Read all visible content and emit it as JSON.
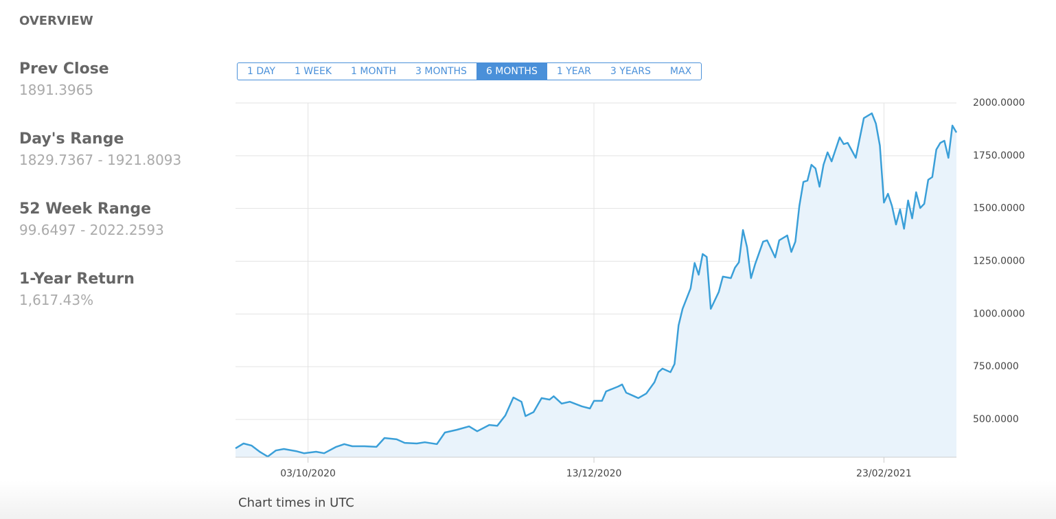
{
  "header": {
    "title": "OVERVIEW"
  },
  "stats": [
    {
      "label": "Prev Close",
      "value": "1891.3965"
    },
    {
      "label": "Day's Range",
      "value": "1829.7367 - 1921.8093"
    },
    {
      "label": "52 Week Range",
      "value": "99.6497 - 2022.2593"
    },
    {
      "label": "1-Year Return",
      "value": "1,617.43%"
    }
  ],
  "range_buttons": [
    "1 DAY",
    "1 WEEK",
    "1 MONTH",
    "3 MONTHS",
    "6 MONTHS",
    "1 YEAR",
    "3 YEARS",
    "MAX"
  ],
  "active_range_button": 4,
  "chart_data": {
    "type": "area",
    "x": [
      "15/09/2020",
      "17/09/2020",
      "19/09/2020",
      "21/09/2020",
      "23/09/2020",
      "25/09/2020",
      "27/09/2020",
      "30/09/2020",
      "02/10/2020",
      "05/10/2020",
      "07/10/2020",
      "10/10/2020",
      "12/10/2020",
      "14/10/2020",
      "17/10/2020",
      "20/10/2020",
      "22/10/2020",
      "25/10/2020",
      "27/10/2020",
      "30/10/2020",
      "01/11/2020",
      "04/11/2020",
      "06/11/2020",
      "09/11/2020",
      "12/11/2020",
      "14/11/2020",
      "17/11/2020",
      "19/11/2020",
      "21/11/2020",
      "23/11/2020",
      "25/11/2020",
      "26/11/2020",
      "28/11/2020",
      "30/11/2020",
      "02/12/2020",
      "03/12/2020",
      "05/12/2020",
      "07/12/2020",
      "10/12/2020",
      "12/12/2020",
      "13/12/2020",
      "15/12/2020",
      "16/12/2020",
      "19/12/2020",
      "20/12/2020",
      "21/12/2020",
      "23/12/2020",
      "24/12/2020",
      "26/12/2020",
      "28/12/2020",
      "29/12/2020",
      "30/12/2020",
      "01/01/2021",
      "02/01/2021",
      "03/01/2021",
      "04/01/2021",
      "06/01/2021",
      "07/01/2021",
      "08/01/2021",
      "09/01/2021",
      "10/01/2021",
      "11/01/2021",
      "13/01/2021",
      "14/01/2021",
      "16/01/2021",
      "17/01/2021",
      "18/01/2021",
      "19/01/2021",
      "20/01/2021",
      "21/01/2021",
      "22/01/2021",
      "24/01/2021",
      "25/01/2021",
      "27/01/2021",
      "28/01/2021",
      "30/01/2021",
      "31/01/2021",
      "01/02/2021",
      "02/02/2021",
      "03/02/2021",
      "04/02/2021",
      "05/02/2021",
      "06/02/2021",
      "07/02/2021",
      "08/02/2021",
      "09/02/2021",
      "10/02/2021",
      "12/02/2021",
      "13/02/2021",
      "14/02/2021",
      "16/02/2021",
      "18/02/2021",
      "20/02/2021",
      "21/02/2021",
      "22/02/2021",
      "23/02/2021",
      "24/02/2021",
      "25/02/2021",
      "26/02/2021",
      "27/02/2021",
      "28/02/2021",
      "01/03/2021",
      "02/03/2021",
      "03/03/2021",
      "04/03/2021",
      "05/03/2021",
      "06/03/2021",
      "07/03/2021",
      "08/03/2021",
      "09/03/2021",
      "10/03/2021",
      "11/03/2021",
      "12/03/2021",
      "13/03/2021"
    ],
    "values": [
      363,
      386,
      376,
      347,
      324,
      353,
      360,
      350,
      340,
      347,
      340,
      370,
      383,
      373,
      373,
      370,
      412,
      406,
      389,
      386,
      392,
      383,
      438,
      451,
      467,
      444,
      474,
      470,
      519,
      604,
      584,
      516,
      535,
      601,
      594,
      610,
      575,
      584,
      562,
      552,
      588,
      588,
      633,
      656,
      666,
      627,
      610,
      601,
      623,
      676,
      724,
      741,
      724,
      763,
      946,
      1024,
      1121,
      1242,
      1186,
      1284,
      1270,
      1024,
      1105,
      1177,
      1170,
      1219,
      1245,
      1398,
      1317,
      1170,
      1235,
      1343,
      1349,
      1268,
      1349,
      1372,
      1294,
      1343,
      1512,
      1626,
      1632,
      1707,
      1690,
      1603,
      1707,
      1766,
      1723,
      1837,
      1805,
      1811,
      1740,
      1928,
      1951,
      1902,
      1798,
      1528,
      1570,
      1512,
      1424,
      1496,
      1404,
      1538,
      1453,
      1577,
      1502,
      1522,
      1636,
      1649,
      1779,
      1811,
      1821,
      1740,
      1893,
      1860
    ],
    "color": "#3a9fd8",
    "fill_color": "#e9f3fb",
    "xlim": [
      "15/09/2020",
      "13/03/2021"
    ],
    "xticks": [
      "03/10/2020",
      "13/12/2020",
      "23/02/2021"
    ],
    "ylim": [
      321,
      2000
    ],
    "yticks": [
      {
        "value": 500,
        "label": "500.0000"
      },
      {
        "value": 750,
        "label": "750.0000"
      },
      {
        "value": 1000,
        "label": "1000.0000"
      },
      {
        "value": 1250,
        "label": "1250.0000"
      },
      {
        "value": 1500,
        "label": "1500.0000"
      },
      {
        "value": 1750,
        "label": "1750.0000"
      },
      {
        "value": 2000,
        "label": "2000.0000"
      }
    ],
    "grid": true,
    "footnote": "Chart times in UTC"
  }
}
